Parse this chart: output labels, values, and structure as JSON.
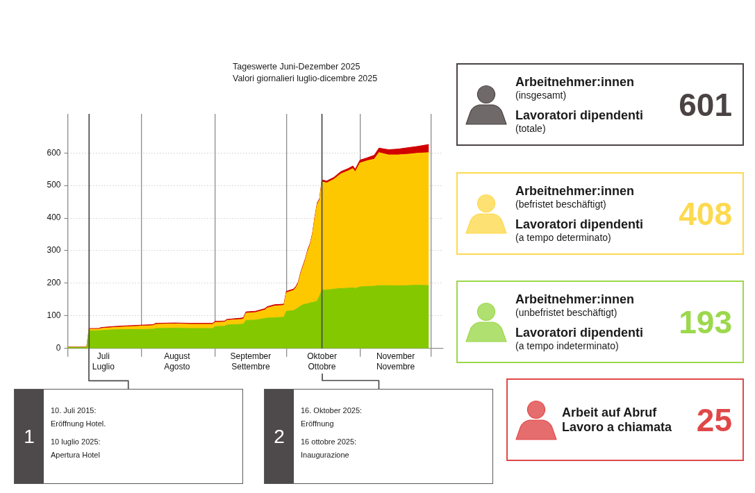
{
  "chart_data": [
    {
      "type": "area",
      "stacked": true,
      "title": "Tageswerte Juni-Dezember 2025",
      "subtitle": "Valori giornalieri luglio-dicembre 2025",
      "x": [
        "2025-07-01",
        "2025-07-09",
        "2025-07-10",
        "2025-07-14",
        "2025-07-15",
        "2025-07-20",
        "2025-07-25",
        "2025-07-31",
        "2025-08-06",
        "2025-08-07",
        "2025-08-15",
        "2025-08-22",
        "2025-08-31",
        "2025-09-01",
        "2025-09-05",
        "2025-09-06",
        "2025-09-12",
        "2025-09-13",
        "2025-09-14",
        "2025-09-18",
        "2025-09-22",
        "2025-09-23",
        "2025-09-26",
        "2025-09-30",
        "2025-10-01",
        "2025-10-04",
        "2025-10-05",
        "2025-10-06",
        "2025-10-07",
        "2025-10-08",
        "2025-10-09",
        "2025-10-10",
        "2025-10-11",
        "2025-10-12",
        "2025-10-13",
        "2025-10-14",
        "2025-10-15",
        "2025-10-16",
        "2025-10-18",
        "2025-10-21",
        "2025-10-24",
        "2025-10-27",
        "2025-10-29",
        "2025-10-30",
        "2025-11-01",
        "2025-11-04",
        "2025-11-07",
        "2025-11-09",
        "2025-11-13",
        "2025-11-17",
        "2025-11-21",
        "2025-11-25",
        "2025-11-30"
      ],
      "series": [
        {
          "color": "#84c800",
          "values": [
            3,
            3,
            54,
            54,
            55,
            57,
            58,
            58,
            59,
            61,
            62,
            61,
            61,
            67,
            68,
            72,
            74,
            75,
            86,
            87,
            92,
            93,
            94,
            96,
            114,
            116,
            120,
            125,
            130,
            134,
            136,
            137,
            140,
            141,
            143,
            146,
            161,
            179,
            179,
            182,
            184,
            185,
            186,
            184,
            189,
            190,
            191,
            193,
            193,
            192,
            193,
            194,
            193
          ]
        },
        {
          "color": "#fec800",
          "values": [
            0,
            0,
            5,
            5,
            6,
            7,
            8,
            10,
            11,
            13,
            13,
            13,
            13,
            13,
            13,
            14,
            15,
            16,
            22,
            23,
            26,
            31,
            36,
            36,
            57,
            62,
            66,
            74,
            98,
            116,
            135,
            162,
            177,
            208,
            256,
            296,
            295,
            332,
            329,
            337,
            352,
            360,
            366,
            358,
            380,
            386,
            390,
            408,
            401,
            402,
            403,
            405,
            408
          ]
        },
        {
          "color": "#d10000",
          "values": [
            1,
            1,
            2,
            2,
            3,
            3,
            3,
            3,
            3,
            3,
            3,
            3,
            3,
            3,
            3,
            3,
            4,
            4,
            4,
            4,
            4,
            4,
            4,
            4,
            4,
            4,
            4,
            4,
            4,
            4,
            4,
            4,
            4,
            4,
            4,
            4,
            4,
            6,
            6,
            6,
            7,
            7,
            8,
            8,
            9,
            9,
            12,
            14,
            16,
            18,
            20,
            21,
            25
          ]
        }
      ],
      "xlim": [
        "2025-07-01",
        "2025-12-06"
      ],
      "xticks": [
        {
          "value": "2025-07-01",
          "label": null
        },
        {
          "value": "2025-07-16",
          "label": "Juli\nLuglio"
        },
        {
          "value": "2025-08-01",
          "label": null
        },
        {
          "value": "2025-08-16",
          "label": "August\nAgosto"
        },
        {
          "value": "2025-09-01",
          "label": null
        },
        {
          "value": "2025-09-16",
          "label": "September\nSettembre"
        },
        {
          "value": "2025-10-01",
          "label": null
        },
        {
          "value": "2025-10-16",
          "label": "Oktober\nOttobre"
        },
        {
          "value": "2025-11-01",
          "label": null
        },
        {
          "value": "2025-11-16",
          "label": "November\nNovembre"
        },
        {
          "value": "2025-12-01",
          "label": null
        }
      ],
      "ylim": [
        0,
        720
      ],
      "yticks": [
        0,
        100,
        200,
        300,
        400,
        500,
        600
      ],
      "grid": true,
      "ref_lines": [
        {
          "axis": "x",
          "value": "2025-07-10",
          "color": "#4a4a4a"
        },
        {
          "axis": "x",
          "value": "2025-10-16",
          "color": "#4a4a4a"
        }
      ],
      "annotations": [
        "1\n10. Juli 2015:\nEröffnung Hotel.\n10 luglio 2025:\nApertura Hotel",
        "2\n16. Oktober 2025:\nEröffnung\n16 ottobre 2025:\nInaugurazione"
      ]
    },
    {
      "type": "other",
      "categories": [
        "Arbeitnehmer:innen\n(insgesamt)\nLavoratori dipendenti\n(totale)",
        "Arbeitnehmer:innen\n(befristet beschäftigt)\nLavoratori dipendenti\n(a tempo determinato)",
        "Arbeitnehmer:innen\n(unbefristet beschäftigt)\nLavoratori dipendenti\n(a tempo indeterminato)",
        "Arbeit auf Abruf\nLavoro a chiamata"
      ],
      "values": [
        601,
        408,
        193,
        25
      ],
      "data_labels": true,
      "colors": [
        "#4b4343",
        "#fdd94f",
        "#9cd84c",
        "#e04848"
      ]
    }
  ]
}
